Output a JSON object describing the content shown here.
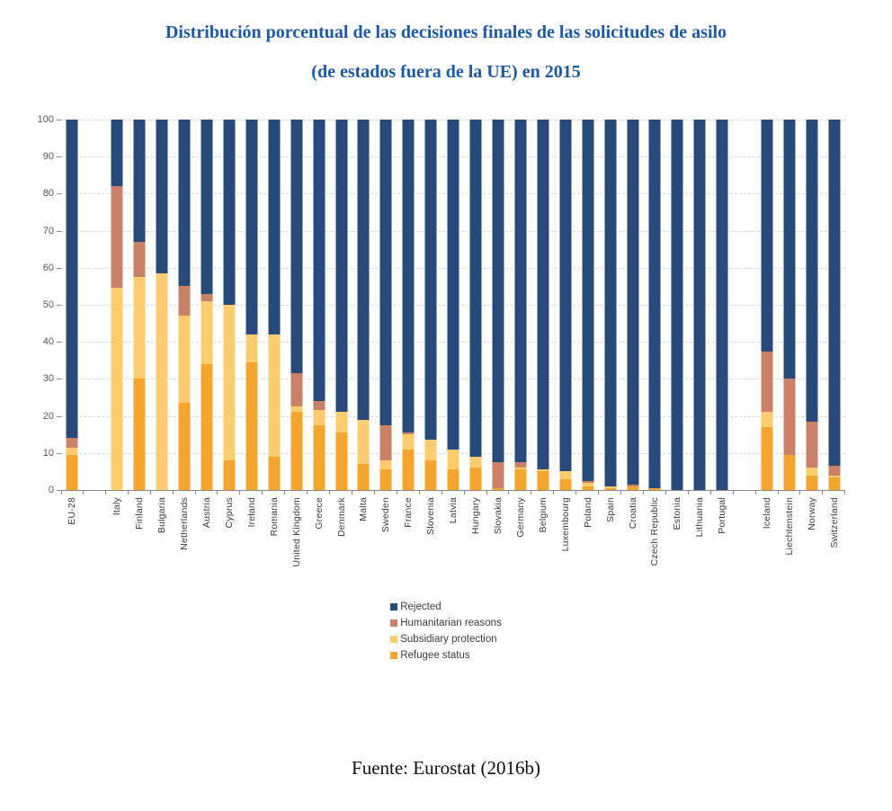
{
  "title": {
    "line1": "Distribución porcentual de las decisiones finales de las solicitudes de asilo",
    "line2": "(de estados fuera de la UE) en 2015"
  },
  "footer": {
    "text": "Fuente: Eurostat (2016b)"
  },
  "chart_data": {
    "type": "bar",
    "stacked": true,
    "value_unit": "percent",
    "title": "Distribución porcentual de las decisiones finales de las solicitudes de asilo (de estados fuera de la UE) en 2015",
    "xlabel": "",
    "ylabel": "",
    "ylim": [
      0,
      100
    ],
    "yticks": [
      0,
      10,
      20,
      30,
      40,
      50,
      60,
      70,
      80,
      90,
      100
    ],
    "grid": "horizontal-dashed",
    "legend_position": "below-center",
    "legend_order": [
      "Rejected",
      "Humanitarian reasons",
      "Subsidiary protection",
      "Refugee status"
    ],
    "categories": [
      "EU-28",
      "Italy",
      "Finland",
      "Bulgaria",
      "Netherlands",
      "Austria",
      "Cyprus",
      "Ireland",
      "Romania",
      "United Kingdom",
      "Greece",
      "Denmark",
      "Malta",
      "Sweden",
      "France",
      "Slovenia",
      "Latvia",
      "Hungary",
      "Slovakia",
      "Germany",
      "Belgium",
      "Luxembourg",
      "Poland",
      "Spain",
      "Croatia",
      "Czech Republic",
      "Estonia",
      "Lithuania",
      "Portugal",
      "Iceland",
      "Liechtenstein",
      "Norway",
      "Switzerland"
    ],
    "gap_after": [
      "EU-28",
      "Portugal"
    ],
    "series": [
      {
        "name": "Refugee status",
        "color": "#F3A52D",
        "values": [
          9.5,
          0,
          30,
          0,
          23.5,
          34,
          8,
          34.5,
          9,
          21,
          17.5,
          15.5,
          7,
          5.5,
          11,
          8,
          5.5,
          6,
          0.5,
          5.5,
          5,
          3,
          1,
          0.5,
          1,
          0.5,
          0,
          0,
          0,
          17,
          9.5,
          4,
          3.5
        ]
      },
      {
        "name": "Subsidiary protection",
        "color": "#FBCD6E",
        "values": [
          2,
          54.5,
          27.5,
          58.5,
          23.5,
          17,
          42,
          7.5,
          33,
          1.5,
          4,
          5.5,
          12,
          2.5,
          4,
          5.5,
          5.5,
          3,
          0,
          0.5,
          0.5,
          2,
          1,
          0.5,
          0,
          0,
          0,
          0,
          0,
          4,
          0,
          2,
          0.5
        ]
      },
      {
        "name": "Humanitarian reasons",
        "color": "#CB8168",
        "values": [
          2.5,
          27.5,
          9.5,
          0,
          8,
          2,
          0,
          0,
          0,
          9,
          2.5,
          0,
          0,
          9.5,
          0.5,
          0,
          0,
          0,
          7,
          1.5,
          0,
          0,
          0.5,
          0,
          0.5,
          0,
          0,
          0,
          0,
          16.5,
          20.5,
          12.5,
          2.5
        ]
      },
      {
        "name": "Rejected",
        "color": "#274A7A",
        "values": [
          86,
          18,
          33,
          41.5,
          45,
          47,
          50,
          58,
          58,
          68.5,
          76,
          79,
          81,
          82.5,
          84.5,
          86.5,
          89,
          91,
          92.5,
          92.5,
          94.5,
          95,
          97.5,
          99,
          98.5,
          99.5,
          100,
          100,
          100,
          62.5,
          70,
          81.5,
          93.5
        ]
      }
    ]
  }
}
